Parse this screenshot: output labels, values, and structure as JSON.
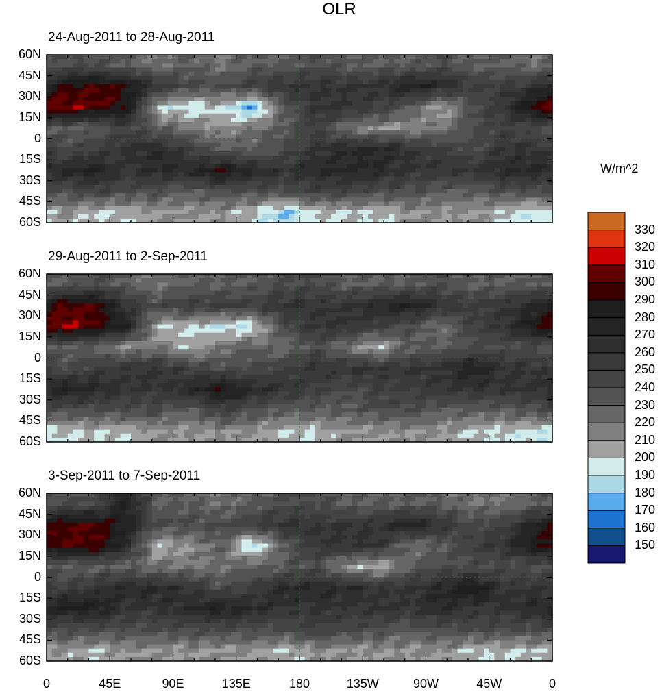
{
  "chart_data": {
    "type": "heatmap",
    "title": "OLR",
    "colorbar": {
      "label": "W/m^2",
      "levels": [
        150,
        160,
        170,
        180,
        190,
        200,
        210,
        220,
        230,
        240,
        250,
        260,
        270,
        280,
        290,
        300,
        310,
        320,
        330
      ],
      "colors": [
        "#191970",
        "#11508a",
        "#1e74d0",
        "#5aaaee",
        "#add8e6",
        "#d2ecec",
        "#a0a0a0",
        "#808080",
        "#666666",
        "#525252",
        "#444444",
        "#3a3a3a",
        "#2f2f2f",
        "#252525",
        "#1e1e1e",
        "#3a0000",
        "#600000",
        "#cc0000",
        "#e03510",
        "#cd6a22"
      ]
    },
    "lat_ticks": [
      "60N",
      "45N",
      "30N",
      "15N",
      "0",
      "15S",
      "30S",
      "45S",
      "60S"
    ],
    "lon_ticks": [
      "0",
      "45E",
      "90E",
      "135E",
      "180",
      "135W",
      "90W",
      "45W",
      "0"
    ],
    "grid_lat_centers": [
      52.5,
      37.5,
      22.5,
      7.5,
      -7.5,
      -22.5,
      -37.5,
      -52.5
    ],
    "grid_lon_step_deg": 22.5,
    "panels": [
      {
        "subtitle": "24-Aug-2011 to 28-Aug-2011",
        "values": [
          [
            240,
            240,
            230,
            220,
            230,
            220,
            230,
            230,
            240,
            230,
            230,
            230,
            240,
            230,
            230,
            220
          ],
          [
            290,
            300,
            290,
            260,
            240,
            240,
            250,
            260,
            260,
            260,
            260,
            280,
            270,
            250,
            250,
            260
          ],
          [
            310,
            300,
            290,
            200,
            190,
            200,
            170,
            230,
            260,
            260,
            250,
            230,
            200,
            240,
            260,
            300
          ],
          [
            230,
            230,
            250,
            230,
            220,
            210,
            220,
            230,
            250,
            220,
            210,
            210,
            220,
            240,
            250,
            240
          ],
          [
            240,
            250,
            260,
            270,
            250,
            230,
            230,
            240,
            260,
            270,
            270,
            260,
            250,
            240,
            260,
            260
          ],
          [
            270,
            280,
            260,
            270,
            270,
            290,
            270,
            260,
            270,
            270,
            270,
            260,
            260,
            260,
            270,
            270
          ],
          [
            240,
            250,
            240,
            240,
            230,
            240,
            240,
            240,
            250,
            250,
            240,
            240,
            230,
            230,
            240,
            240
          ],
          [
            210,
            200,
            200,
            210,
            210,
            210,
            200,
            180,
            200,
            200,
            200,
            210,
            210,
            210,
            200,
            190
          ]
        ]
      },
      {
        "subtitle": "29-Aug-2011 to 2-Sep-2011",
        "values": [
          [
            230,
            240,
            230,
            220,
            230,
            230,
            230,
            240,
            240,
            230,
            230,
            230,
            240,
            230,
            230,
            230
          ],
          [
            300,
            300,
            260,
            240,
            250,
            250,
            250,
            260,
            260,
            260,
            270,
            280,
            260,
            250,
            260,
            270
          ],
          [
            310,
            300,
            280,
            200,
            200,
            190,
            190,
            240,
            260,
            260,
            250,
            240,
            220,
            250,
            260,
            290
          ],
          [
            230,
            230,
            210,
            220,
            200,
            220,
            230,
            220,
            240,
            220,
            200,
            230,
            230,
            240,
            240,
            240
          ],
          [
            240,
            250,
            260,
            260,
            250,
            240,
            240,
            250,
            260,
            260,
            260,
            260,
            260,
            280,
            260,
            260
          ],
          [
            280,
            270,
            260,
            260,
            270,
            290,
            270,
            260,
            250,
            240,
            250,
            250,
            260,
            260,
            260,
            260
          ],
          [
            240,
            240,
            240,
            240,
            230,
            250,
            240,
            230,
            230,
            230,
            240,
            240,
            230,
            230,
            230,
            240
          ],
          [
            200,
            200,
            200,
            210,
            210,
            210,
            210,
            200,
            200,
            210,
            210,
            210,
            210,
            200,
            200,
            190
          ]
        ]
      },
      {
        "subtitle": "3-Sep-2011 to 7-Sep-2011",
        "values": [
          [
            240,
            240,
            280,
            230,
            230,
            220,
            230,
            240,
            240,
            230,
            230,
            230,
            230,
            220,
            220,
            230
          ],
          [
            300,
            300,
            280,
            240,
            240,
            240,
            250,
            260,
            260,
            260,
            260,
            280,
            260,
            240,
            250,
            280
          ],
          [
            300,
            300,
            270,
            200,
            210,
            230,
            180,
            230,
            260,
            260,
            260,
            220,
            230,
            250,
            260,
            290
          ],
          [
            230,
            230,
            230,
            220,
            220,
            220,
            230,
            230,
            240,
            210,
            200,
            230,
            240,
            240,
            240,
            240
          ],
          [
            250,
            260,
            270,
            270,
            260,
            240,
            250,
            270,
            270,
            270,
            260,
            260,
            270,
            290,
            260,
            260
          ],
          [
            280,
            280,
            260,
            260,
            270,
            280,
            270,
            260,
            260,
            260,
            260,
            260,
            270,
            260,
            260,
            270
          ],
          [
            240,
            240,
            240,
            240,
            240,
            240,
            240,
            240,
            250,
            240,
            240,
            230,
            240,
            240,
            240,
            240
          ],
          [
            210,
            200,
            210,
            210,
            210,
            210,
            210,
            200,
            210,
            210,
            210,
            210,
            210,
            200,
            200,
            200
          ]
        ]
      }
    ]
  }
}
